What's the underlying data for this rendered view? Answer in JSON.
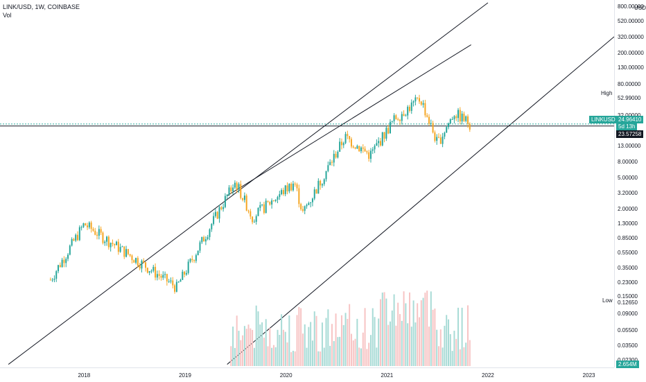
{
  "header": {
    "title": "LINK/USD, 1W, COINBASE",
    "volume_label": "Vol"
  },
  "price_axis": {
    "ticks": [
      "800.00000",
      "520.00000",
      "320.00000",
      "200.00000",
      "130.00000",
      "80.00000",
      "52.99000",
      "32.00000",
      "24.96410",
      "23.57258",
      "13.00000",
      "8.00000",
      "5.00000",
      "3.20000",
      "2.00000",
      "1.30000",
      "0.85000",
      "0.55000",
      "0.35000",
      "0.23000",
      "0.15000",
      "0.12650",
      "0.09000",
      "0.05500",
      "0.03500",
      "0.02300"
    ],
    "top_unit": "USD",
    "high_label": "High",
    "high_value": "52.99000",
    "low_label": "Low",
    "low_value": "0.12650",
    "symbol_tag": "LINKUSD",
    "last_price": "24.96410",
    "countdown": "5d 13h",
    "crosshair_price": "23.57258",
    "volume_value": "2.654M"
  },
  "time_axis": {
    "labels": [
      "2018",
      "2019",
      "2020",
      "2021",
      "2022",
      "2023"
    ]
  },
  "colors": {
    "up": "#26a69a",
    "down": "#f5a623",
    "line": "#131722",
    "tag_bg": "#26a69a",
    "vol_up": "#a8dbd6",
    "vol_down": "#f7c4c4"
  },
  "chart_data": {
    "type": "candlestick",
    "title": "LINK/USD, 1W, COINBASE",
    "y_scale": "log",
    "ylim": [
      0.0195,
      900
    ],
    "xlim": [
      "2017-03",
      "2023-04"
    ],
    "key_points": [
      {
        "date": "2017-09",
        "price": 0.25
      },
      {
        "date": "2018-01",
        "price": 1.3
      },
      {
        "date": "2018-12",
        "price": 0.2
      },
      {
        "date": "2019-06",
        "price": 3.0
      },
      {
        "date": "2019-07",
        "price": 4.5
      },
      {
        "date": "2019-09",
        "price": 1.6
      },
      {
        "date": "2020-02",
        "price": 4.5
      },
      {
        "date": "2020-03",
        "price": 1.8
      },
      {
        "date": "2020-08",
        "price": 17.0
      },
      {
        "date": "2020-11",
        "price": 10.0
      },
      {
        "date": "2021-02",
        "price": 30.0
      },
      {
        "date": "2021-05",
        "price": 52.99
      },
      {
        "date": "2021-07",
        "price": 14.0
      },
      {
        "date": "2021-09",
        "price": 35.0
      },
      {
        "date": "2021-11",
        "price": 24.96
      }
    ],
    "trend_lines": [
      {
        "name": "upper channel",
        "from": {
          "date": "2017-04",
          "price": 0.0205
        },
        "to": {
          "date": "2022-01",
          "price": 900
        }
      },
      {
        "name": "middle channel",
        "from": {
          "date": "2019-06",
          "price": 3.0
        },
        "to": {
          "date": "2021-11",
          "price": 260
        }
      },
      {
        "name": "lower channel",
        "from": {
          "date": "2019-06",
          "price": 0.0205
        },
        "to": {
          "date": "2023-04",
          "price": 330
        }
      }
    ],
    "horizontal_lines": [
      24.96,
      23.57
    ],
    "volume": {
      "last": "2.654M"
    }
  }
}
